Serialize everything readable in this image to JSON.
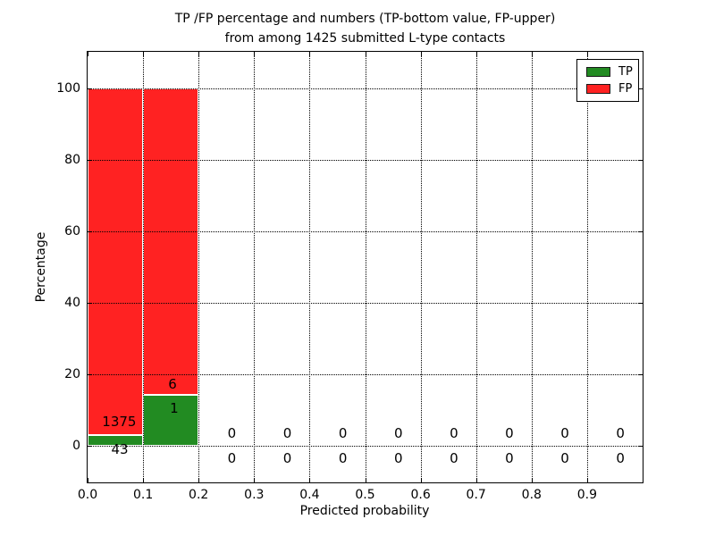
{
  "figure": {
    "title_line1": "TP /FP percentage and numbers (TP-bottom value, FP-upper)",
    "title_line2": "from among 1425 submitted L-type contacts"
  },
  "colors": {
    "tp": "#228b22",
    "fp": "#ff2222",
    "grid": "#000000",
    "bar_edge": "#ffffff",
    "axis": "#000000"
  },
  "chart_data": {
    "type": "bar",
    "stacked": true,
    "title": "TP /FP percentage and numbers (TP-bottom value, FP-upper) from among 1425 submitted L-type contacts",
    "total_submitted": 1425,
    "xlabel": "Predicted probability",
    "ylabel": "Percentage",
    "xlim": [
      0,
      1.0
    ],
    "ylim": [
      -10.25,
      110.25
    ],
    "xticks": [
      0.0,
      0.1,
      0.2,
      0.3,
      0.4,
      0.5,
      0.6,
      0.7,
      0.8,
      0.9
    ],
    "yticks": [
      0,
      20,
      40,
      60,
      80,
      100
    ],
    "grid": true,
    "legend_position": "upper right",
    "bin_width": 0.1,
    "bin_starts": [
      0.0,
      0.1,
      0.2,
      0.3,
      0.4,
      0.5,
      0.6,
      0.7,
      0.8,
      0.9
    ],
    "series": [
      {
        "name": "TP",
        "color": "#228b22",
        "counts": [
          43,
          1,
          0,
          0,
          0,
          0,
          0,
          0,
          0,
          0
        ],
        "percents": [
          3.0324,
          14.2857,
          0,
          0,
          0,
          0,
          0,
          0,
          0,
          0
        ]
      },
      {
        "name": "FP",
        "color": "#ff2222",
        "counts": [
          1375,
          6,
          0,
          0,
          0,
          0,
          0,
          0,
          0,
          0
        ],
        "percents": [
          96.9676,
          85.7143,
          0,
          0,
          0,
          0,
          0,
          0,
          0,
          0
        ]
      }
    ],
    "annotations": [
      {
        "text": "1375",
        "x": 0.057,
        "y": 6.8
      },
      {
        "text": "43",
        "x": 0.058,
        "y": -1.0
      },
      {
        "text": "6",
        "x": 0.153,
        "y": 17.3
      },
      {
        "text": "1",
        "x": 0.156,
        "y": 10.5
      },
      {
        "text": "0",
        "x": 0.26,
        "y": 3.5
      },
      {
        "text": "0",
        "x": 0.36,
        "y": 3.5
      },
      {
        "text": "0",
        "x": 0.46,
        "y": 3.5
      },
      {
        "text": "0",
        "x": 0.56,
        "y": 3.5
      },
      {
        "text": "0",
        "x": 0.66,
        "y": 3.5
      },
      {
        "text": "0",
        "x": 0.76,
        "y": 3.5
      },
      {
        "text": "0",
        "x": 0.86,
        "y": 3.5
      },
      {
        "text": "0",
        "x": 0.96,
        "y": 3.5
      },
      {
        "text": "0",
        "x": 0.26,
        "y": -3.5
      },
      {
        "text": "0",
        "x": 0.36,
        "y": -3.5
      },
      {
        "text": "0",
        "x": 0.46,
        "y": -3.5
      },
      {
        "text": "0",
        "x": 0.56,
        "y": -3.5
      },
      {
        "text": "0",
        "x": 0.66,
        "y": -3.5
      },
      {
        "text": "0",
        "x": 0.76,
        "y": -3.5
      },
      {
        "text": "0",
        "x": 0.86,
        "y": -3.5
      },
      {
        "text": "0",
        "x": 0.96,
        "y": -3.5
      }
    ]
  }
}
